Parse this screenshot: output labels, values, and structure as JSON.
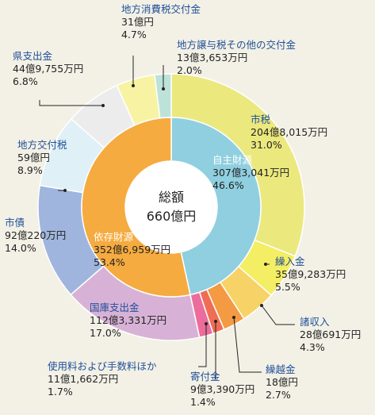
{
  "chart_data": {
    "type": "donut",
    "center": {
      "line1": "総額",
      "line2": "660億円"
    },
    "inner": [
      {
        "name": "自主財源",
        "amount": "307億3,041万円",
        "pct": "46.6%",
        "value": 46.6,
        "color": "#8fcfe0"
      },
      {
        "name": "依存財源",
        "amount": "352億6,959万円",
        "pct": "53.4%",
        "value": 53.4,
        "color": "#f5ab3f"
      }
    ],
    "outer": [
      {
        "name": "市税",
        "amount": "204億8,015万円",
        "pct": "31.0%",
        "value": 31.0,
        "color": "#ebe87e"
      },
      {
        "name": "繰入金",
        "amount": "35億9,283万円",
        "pct": "5.5%",
        "value": 5.5,
        "color": "#f3ee63"
      },
      {
        "name": "諸収入",
        "amount": "28億691万円",
        "pct": "4.3%",
        "value": 4.3,
        "color": "#f7d266"
      },
      {
        "name": "繰越金",
        "amount": "18億円",
        "pct": "2.7%",
        "value": 2.7,
        "color": "#f39a43"
      },
      {
        "name": "寄付金",
        "amount": "9億3,390万円",
        "pct": "1.4%",
        "value": 1.4,
        "color": "#ef6d55"
      },
      {
        "name": "使用料および手数料ほか",
        "amount": "11億1,662万円",
        "pct": "1.7%",
        "value": 1.7,
        "color": "#ec6d9c"
      },
      {
        "name": "国庫支出金",
        "amount": "112億3,331万円",
        "pct": "17.0%",
        "value": 17.0,
        "color": "#d8b2d6"
      },
      {
        "name": "市債",
        "amount": "92億220万円",
        "pct": "14.0%",
        "value": 14.0,
        "color": "#9fb5dd"
      },
      {
        "name": "地方交付税",
        "amount": "59億円",
        "pct": "8.9%",
        "value": 8.9,
        "color": "#dff0f7"
      },
      {
        "name": "県支出金",
        "amount": "44億9,755万円",
        "pct": "6.8%",
        "value": 6.8,
        "color": "#ececec"
      },
      {
        "name": "地方消費税交付金",
        "amount": "31億円",
        "pct": "4.7%",
        "value": 4.7,
        "color": "#f7f3a3"
      },
      {
        "name": "地方譲与税その他の交付金",
        "amount": "13億3,653万円",
        "pct": "2.0%",
        "value": 2.0,
        "color": "#bde3d8"
      }
    ]
  }
}
